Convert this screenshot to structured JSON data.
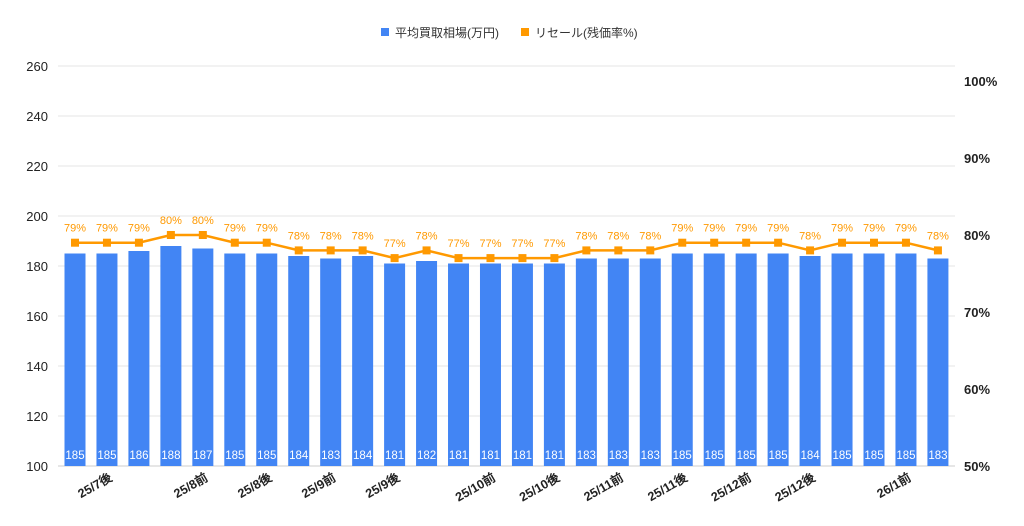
{
  "chart_data": {
    "type": "bar+line",
    "legend": {
      "placement": "top",
      "entries": [
        "平均買取相場(万円)",
        "リセール(残価率%)"
      ]
    },
    "categories": [
      "",
      "25/7後",
      "",
      "",
      "25/8前",
      "",
      "25/8後",
      "",
      "25/9前",
      "",
      "25/9後",
      "",
      "",
      "25/10前",
      "",
      "25/10後",
      "",
      "25/11前",
      "",
      "25/11後",
      "",
      "25/12前",
      "",
      "25/12後",
      "",
      "",
      "26/1前",
      ""
    ],
    "series": [
      {
        "name": "平均買取相場(万円)",
        "type": "bar",
        "axis": "left",
        "color": "#4285f4",
        "values": [
          185,
          185,
          186,
          188,
          187,
          185,
          185,
          184,
          183,
          184,
          181,
          182,
          181,
          181,
          181,
          181,
          183,
          183,
          183,
          185,
          185,
          185,
          185,
          184,
          185,
          185,
          185,
          183
        ]
      },
      {
        "name": "リセール(残価率%)",
        "type": "line",
        "axis": "right",
        "color": "#ff9900",
        "values": [
          79,
          79,
          79,
          80,
          80,
          79,
          79,
          78,
          78,
          78,
          77,
          78,
          77,
          77,
          77,
          77,
          78,
          78,
          78,
          79,
          79,
          79,
          79,
          78,
          79,
          79,
          79,
          78
        ]
      }
    ],
    "left_axis": {
      "range": [
        100,
        260
      ],
      "ticks": [
        "100",
        "120",
        "140",
        "160",
        "180",
        "200",
        "220",
        "240",
        "260"
      ]
    },
    "right_axis": {
      "range": [
        50,
        100
      ],
      "ticks": [
        "50%",
        "60%",
        "70%",
        "80%",
        "90%",
        "100%"
      ]
    },
    "grid": true
  }
}
